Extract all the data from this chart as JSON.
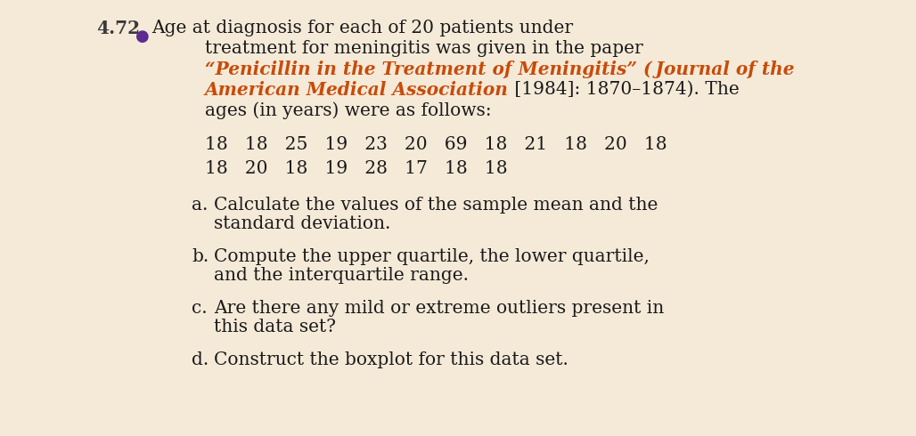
{
  "background_color": "#f5ead8",
  "problem_number": "4.72",
  "problem_number_color": "#3a3a3a",
  "bullet_color": "#5b2d8e",
  "orange_color": "#c84b0a",
  "black_color": "#1a1a1a",
  "line1": "Age at diagnosis for each of 20 patients under",
  "line2": "treatment for meningitis was given in the paper",
  "line3_full_orange": "“Penicillin in the Treatment of Meningitis” ( Journal of the",
  "line4_orange_part": "American Medical Association",
  "line4_black_part": " [1984]: 1870–1874).",
  "line4_black_end": " The",
  "line5": "ages (in years) were as follows:",
  "data_line1": "18   18   25   19   23   20   69   18   21   18   20   18",
  "data_line2": "18   20   18   19   28   17   18   18",
  "part_a_letter": "a.",
  "part_a_text1": "Calculate the values of the sample mean and the",
  "part_a_text2": "standard deviation.",
  "part_b_letter": "b.",
  "part_b_text1": "Compute the upper quartile, the lower quartile,",
  "part_b_text2": "and the interquartile range.",
  "part_c_letter": "c.",
  "part_c_text1": "Are there any mild or extreme outliers present in",
  "part_c_text2": "this data set?",
  "part_d_letter": "d.",
  "part_d_text1": "Construct the boxplot for this data set.",
  "fs_main": 14.5,
  "fs_num": 14.5
}
